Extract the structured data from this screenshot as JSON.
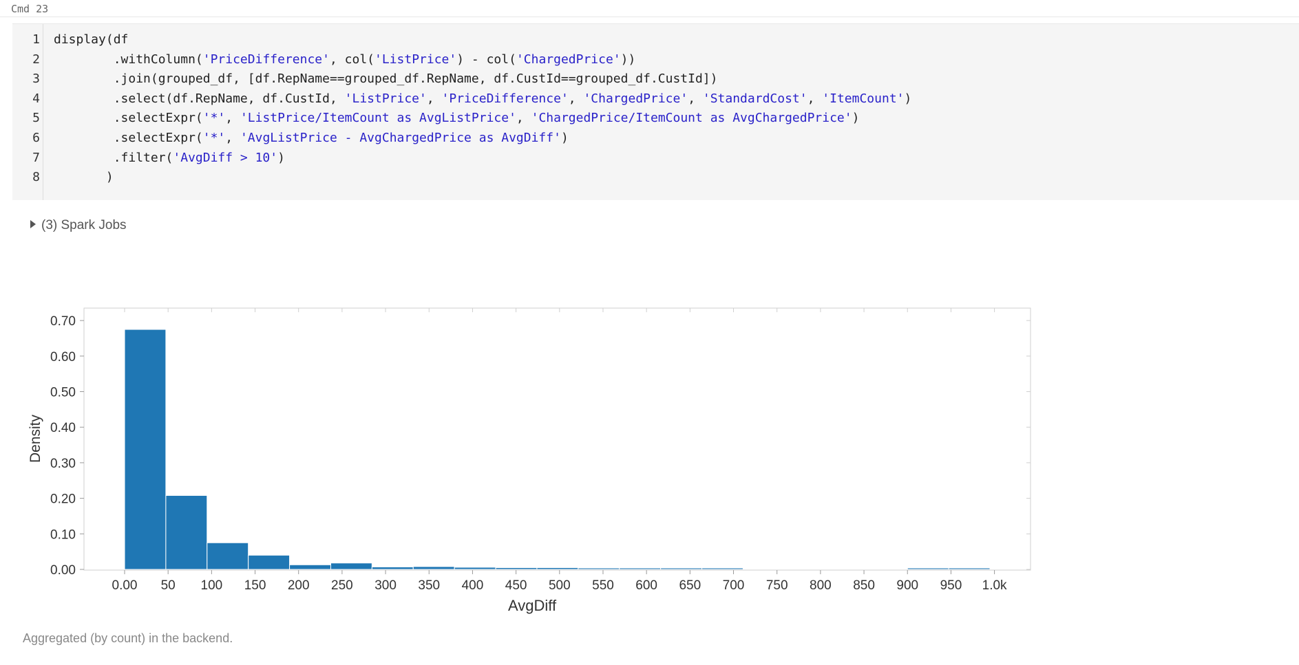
{
  "cell": {
    "label": "Cmd 23"
  },
  "code": {
    "lines": [
      {
        "num": "1",
        "tokens": [
          {
            "t": "display(df",
            "s": false
          }
        ]
      },
      {
        "num": "2",
        "tokens": [
          {
            "t": "        .withColumn(",
            "s": false
          },
          {
            "t": "'PriceDifference'",
            "s": true
          },
          {
            "t": ", col(",
            "s": false
          },
          {
            "t": "'ListPrice'",
            "s": true
          },
          {
            "t": ") - col(",
            "s": false
          },
          {
            "t": "'ChargedPrice'",
            "s": true
          },
          {
            "t": "))",
            "s": false
          }
        ]
      },
      {
        "num": "3",
        "tokens": [
          {
            "t": "        .join(grouped_df, [df.RepName==grouped_df.RepName, df.CustId==grouped_df.CustId])",
            "s": false
          }
        ]
      },
      {
        "num": "4",
        "tokens": [
          {
            "t": "        .select(df.RepName, df.CustId, ",
            "s": false
          },
          {
            "t": "'ListPrice'",
            "s": true
          },
          {
            "t": ", ",
            "s": false
          },
          {
            "t": "'PriceDifference'",
            "s": true
          },
          {
            "t": ", ",
            "s": false
          },
          {
            "t": "'ChargedPrice'",
            "s": true
          },
          {
            "t": ", ",
            "s": false
          },
          {
            "t": "'StandardCost'",
            "s": true
          },
          {
            "t": ", ",
            "s": false
          },
          {
            "t": "'ItemCount'",
            "s": true
          },
          {
            "t": ")",
            "s": false
          }
        ]
      },
      {
        "num": "5",
        "tokens": [
          {
            "t": "        .selectExpr(",
            "s": false
          },
          {
            "t": "'*'",
            "s": true
          },
          {
            "t": ", ",
            "s": false
          },
          {
            "t": "'ListPrice/ItemCount as AvgListPrice'",
            "s": true
          },
          {
            "t": ", ",
            "s": false
          },
          {
            "t": "'ChargedPrice/ItemCount as AvgChargedPrice'",
            "s": true
          },
          {
            "t": ")",
            "s": false
          }
        ]
      },
      {
        "num": "6",
        "tokens": [
          {
            "t": "        .selectExpr(",
            "s": false
          },
          {
            "t": "'*'",
            "s": true
          },
          {
            "t": ", ",
            "s": false
          },
          {
            "t": "'AvgListPrice - AvgChargedPrice as AvgDiff'",
            "s": true
          },
          {
            "t": ")",
            "s": false
          }
        ]
      },
      {
        "num": "7",
        "tokens": [
          {
            "t": "        .filter(",
            "s": false
          },
          {
            "t": "'AvgDiff > 10'",
            "s": true
          },
          {
            "t": ")",
            "s": false
          }
        ]
      },
      {
        "num": "8",
        "tokens": [
          {
            "t": "       )",
            "s": false
          }
        ]
      }
    ]
  },
  "spark_jobs": {
    "label": "(3) Spark Jobs"
  },
  "footer": {
    "note": "Aggregated (by count) in the backend."
  },
  "colors": {
    "bar": "#1f77b4",
    "axis": "#cfcfcf",
    "string": "#2a22c9"
  },
  "chart_data": {
    "type": "bar",
    "xlabel": "AvgDiff",
    "ylabel": "Density",
    "ylim": [
      0,
      0.7
    ],
    "xlim": [
      -48,
      1000
    ],
    "yticks": [
      {
        "v": 0.0,
        "label": "0.00"
      },
      {
        "v": 0.1,
        "label": "0.10"
      },
      {
        "v": 0.2,
        "label": "0.20"
      },
      {
        "v": 0.3,
        "label": "0.30"
      },
      {
        "v": 0.4,
        "label": "0.40"
      },
      {
        "v": 0.5,
        "label": "0.50"
      },
      {
        "v": 0.6,
        "label": "0.60"
      },
      {
        "v": 0.7,
        "label": "0.70"
      }
    ],
    "xticks": [
      {
        "v": 0,
        "label": "0.00"
      },
      {
        "v": 50,
        "label": "50"
      },
      {
        "v": 100,
        "label": "100"
      },
      {
        "v": 150,
        "label": "150"
      },
      {
        "v": 200,
        "label": "200"
      },
      {
        "v": 250,
        "label": "250"
      },
      {
        "v": 300,
        "label": "300"
      },
      {
        "v": 350,
        "label": "350"
      },
      {
        "v": 400,
        "label": "400"
      },
      {
        "v": 450,
        "label": "450"
      },
      {
        "v": 500,
        "label": "500"
      },
      {
        "v": 550,
        "label": "550"
      },
      {
        "v": 600,
        "label": "600"
      },
      {
        "v": 650,
        "label": "650"
      },
      {
        "v": 700,
        "label": "700"
      },
      {
        "v": 750,
        "label": "750"
      },
      {
        "v": 800,
        "label": "800"
      },
      {
        "v": 850,
        "label": "850"
      },
      {
        "v": 900,
        "label": "900"
      },
      {
        "v": 950,
        "label": "950"
      },
      {
        "v": 1000,
        "label": "1.0k"
      }
    ],
    "bars": [
      {
        "x0": 0,
        "x1": 47.4,
        "value": 0.675
      },
      {
        "x0": 47.4,
        "x1": 94.8,
        "value": 0.208
      },
      {
        "x0": 94.8,
        "x1": 142.2,
        "value": 0.075
      },
      {
        "x0": 142.2,
        "x1": 189.6,
        "value": 0.04
      },
      {
        "x0": 189.6,
        "x1": 237.0,
        "value": 0.013
      },
      {
        "x0": 237.0,
        "x1": 284.4,
        "value": 0.018
      },
      {
        "x0": 284.4,
        "x1": 331.8,
        "value": 0.007
      },
      {
        "x0": 331.8,
        "x1": 379.2,
        "value": 0.008
      },
      {
        "x0": 379.2,
        "x1": 426.6,
        "value": 0.006
      },
      {
        "x0": 426.6,
        "x1": 474.0,
        "value": 0.005
      },
      {
        "x0": 474.0,
        "x1": 521.4,
        "value": 0.005
      },
      {
        "x0": 521.4,
        "x1": 568.8,
        "value": 0.004
      },
      {
        "x0": 568.8,
        "x1": 616.2,
        "value": 0.004
      },
      {
        "x0": 616.2,
        "x1": 663.6,
        "value": 0.004
      },
      {
        "x0": 663.6,
        "x1": 711.0,
        "value": 0.004
      },
      {
        "x0": 900.0,
        "x1": 947.4,
        "value": 0.004
      },
      {
        "x0": 947.4,
        "x1": 994.8,
        "value": 0.004
      }
    ]
  }
}
